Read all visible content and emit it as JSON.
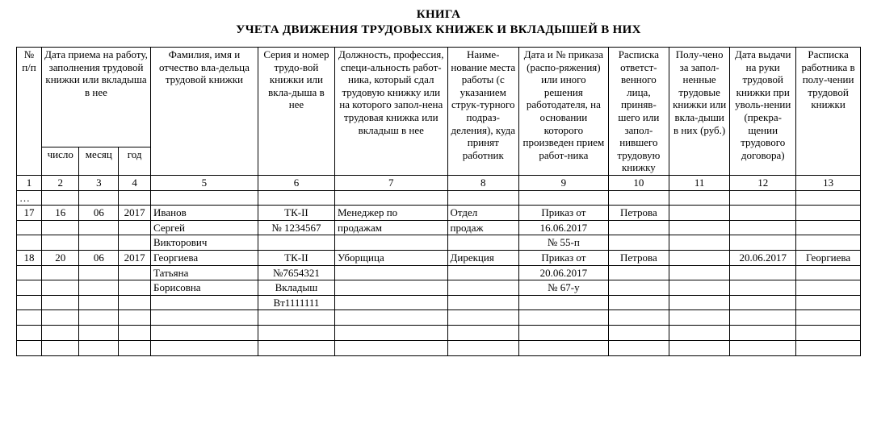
{
  "title1": "КНИГА",
  "title2": "УЧЕТА ДВИЖЕНИЯ  ТРУДОВЫХ КНИЖЕК И ВКЛАДЫШЕЙ В НИХ",
  "headers": {
    "col1": "№ п/п",
    "col_group_date": "Дата приема на работу, заполнения трудовой книжки или вкладыша в нее",
    "col2": "число",
    "col3": "месяц",
    "col4": "год",
    "col5": "Фамилия, имя и отчество вла-дельца трудовой книжки",
    "col6": "Серия и номер трудо-вой книжки или вкла-дыша в нее",
    "col7": "Должность, профессия, специ-альность работ-ника, который сдал трудовую книжку или на которого запол-нена трудовая книжка или вкладыш в нее",
    "col8": "Наиме-нование места работы (с указанием струк-турного подраз-деления), куда принят работник",
    "col9": "Дата и № приказа (распо-ряжения) или иного решения работодателя, на основании которого произведен прием работ-ника",
    "col10": "Расписка ответст-венного лица, приняв-шего или запол-нившего трудовую книжку",
    "col11": "Полу-чено за запол-ненные трудовые книжки или вкла-дыши в них (руб.)",
    "col12": "Дата выдачи на руки трудовой книжки при уволь-нении (прекра-щении трудового договора)",
    "col13": "Расписка работника в полу-чении трудовой книжки"
  },
  "col_numbers": [
    "1",
    "2",
    "3",
    "4",
    "5",
    "6",
    "7",
    "8",
    "9",
    "10",
    "11",
    "12",
    "13"
  ],
  "ellipsis": "…",
  "rows": [
    {
      "c1": "17",
      "c2": "16",
      "c3": "06",
      "c4": "2017",
      "c5": "Иванов",
      "c6": "ТК-II",
      "c7": "Менеджер по",
      "c8": "Отдел",
      "c9": "Приказ от",
      "c10": "Петрова",
      "c11": "",
      "c12": "",
      "c13": ""
    },
    {
      "c1": "",
      "c2": "",
      "c3": "",
      "c4": "",
      "c5": "Сергей",
      "c6": "№ 1234567",
      "c7": "продажам",
      "c8": "продаж",
      "c9": "16.06.2017",
      "c10": "",
      "c11": "",
      "c12": "",
      "c13": ""
    },
    {
      "c1": "",
      "c2": "",
      "c3": "",
      "c4": "",
      "c5": "Викторович",
      "c6": "",
      "c7": "",
      "c8": "",
      "c9": "№ 55-п",
      "c10": "",
      "c11": "",
      "c12": "",
      "c13": ""
    },
    {
      "c1": "18",
      "c2": "20",
      "c3": "06",
      "c4": "2017",
      "c5": "Георгиева",
      "c6": "ТК-II",
      "c7": "Уборщица",
      "c8": "Дирекция",
      "c9": "Приказ от",
      "c10": "Петрова",
      "c11": "",
      "c12": "20.06.2017",
      "c13": "Георгиева"
    },
    {
      "c1": "",
      "c2": "",
      "c3": "",
      "c4": "",
      "c5": "Татьяна",
      "c6": "№7654321",
      "c7": "",
      "c8": "",
      "c9": "20.06.2017",
      "c10": "",
      "c11": "",
      "c12": "",
      "c13": ""
    },
    {
      "c1": "",
      "c2": "",
      "c3": "",
      "c4": "",
      "c5": "Борисовна",
      "c6": "Вкладыш",
      "c7": "",
      "c8": "",
      "c9": "№ 67-у",
      "c10": "",
      "c11": "",
      "c12": "",
      "c13": ""
    },
    {
      "c1": "",
      "c2": "",
      "c3": "",
      "c4": "",
      "c5": "",
      "c6": "Вт1111111",
      "c7": "",
      "c8": "",
      "c9": "",
      "c10": "",
      "c11": "",
      "c12": "",
      "c13": ""
    }
  ],
  "empty_rows_after": 3,
  "colors": {
    "text": "#000000",
    "border": "#000000",
    "background": "#ffffff"
  }
}
